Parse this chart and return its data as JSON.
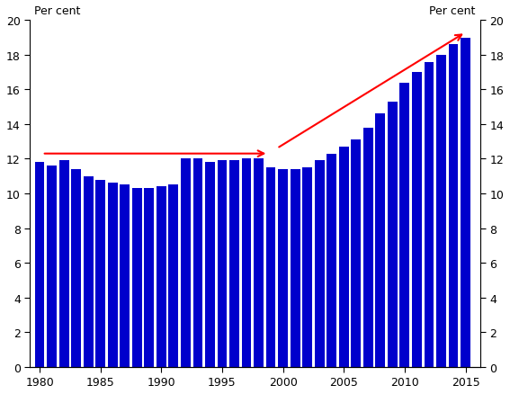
{
  "years": [
    1980,
    1981,
    1982,
    1983,
    1984,
    1985,
    1986,
    1987,
    1988,
    1989,
    1990,
    1991,
    1992,
    1993,
    1994,
    1995,
    1996,
    1997,
    1998,
    1999,
    2000,
    2001,
    2002,
    2003,
    2004,
    2005,
    2006,
    2007,
    2008,
    2009,
    2010,
    2011,
    2012,
    2013,
    2014,
    2015
  ],
  "values": [
    11.8,
    11.6,
    11.9,
    11.4,
    11.0,
    10.8,
    10.6,
    10.5,
    10.3,
    10.3,
    10.4,
    10.5,
    12.0,
    12.0,
    11.8,
    11.9,
    11.9,
    12.0,
    12.0,
    11.5,
    11.4,
    11.4,
    11.5,
    11.9,
    12.3,
    12.7,
    13.1,
    13.8,
    14.6,
    15.3,
    16.4,
    17.0,
    17.6,
    18.0,
    18.6,
    19.0
  ],
  "bar_color": "#0000cc",
  "ylabel_left": "Per cent",
  "ylabel_right": "Per cent",
  "ylim": [
    0,
    20
  ],
  "yticks": [
    0,
    2,
    4,
    6,
    8,
    10,
    12,
    14,
    16,
    18,
    20
  ],
  "xticks": [
    1980,
    1985,
    1990,
    1995,
    2000,
    2005,
    2010,
    2015
  ],
  "background_color": "#ffffff"
}
